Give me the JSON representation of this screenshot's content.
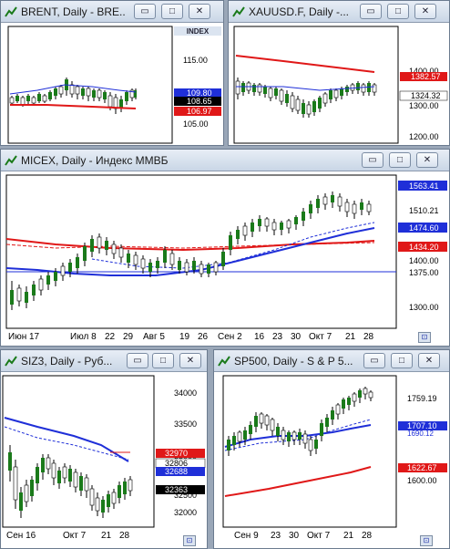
{
  "windows": {
    "brent": {
      "title": "BRENT, Daily - BRE...",
      "index_label": "INDEX",
      "ticks": [
        "115.00",
        "105.00"
      ],
      "price_labels": [
        "109.80",
        "108.65",
        "106.97"
      ],
      "colors": {
        "blue": "#1f2fd8",
        "black": "#000000",
        "red": "#e01818"
      }
    },
    "xau": {
      "title": "XAUUSD.F, Daily -...",
      "ticks": [
        "1400.00",
        "1300.00",
        "1200.00"
      ],
      "price_labels": [
        "1382.57",
        "1324.32"
      ]
    },
    "micex": {
      "title": "MICEX, Daily - Индекс ММВБ",
      "ticks": [
        "1563.41",
        "1510.21",
        "1474.60",
        "1434.20",
        "1400.00",
        "1375.00",
        "1300.00"
      ],
      "dates": [
        "Июн 17",
        "Июл 8",
        "22",
        "29",
        "Авг 5",
        "19",
        "26",
        "Сен 2",
        "16",
        "23",
        "30",
        "Окт 7",
        "21",
        "28"
      ]
    },
    "siz3": {
      "title": "SIZ3, Daily - Руб...",
      "ticks": [
        "34000",
        "33500",
        "33000",
        "32500",
        "32000"
      ],
      "price_labels": [
        "32970",
        "32806",
        "32688",
        "32363"
      ],
      "dates": [
        "Сен 16",
        "Окт 7",
        "21",
        "28"
      ]
    },
    "sp500": {
      "title": "SP500, Daily - S & P 5...",
      "ticks": [
        "1759.19",
        "1707.10",
        "1690.12",
        "1622.67",
        "1600.00"
      ],
      "dates": [
        "Сен 9",
        "23",
        "30",
        "Окт 7",
        "21",
        "28"
      ]
    }
  },
  "buttons": {
    "minimize": "▭",
    "maximize": "□",
    "close": "✕"
  },
  "corner_label": "⊡"
}
